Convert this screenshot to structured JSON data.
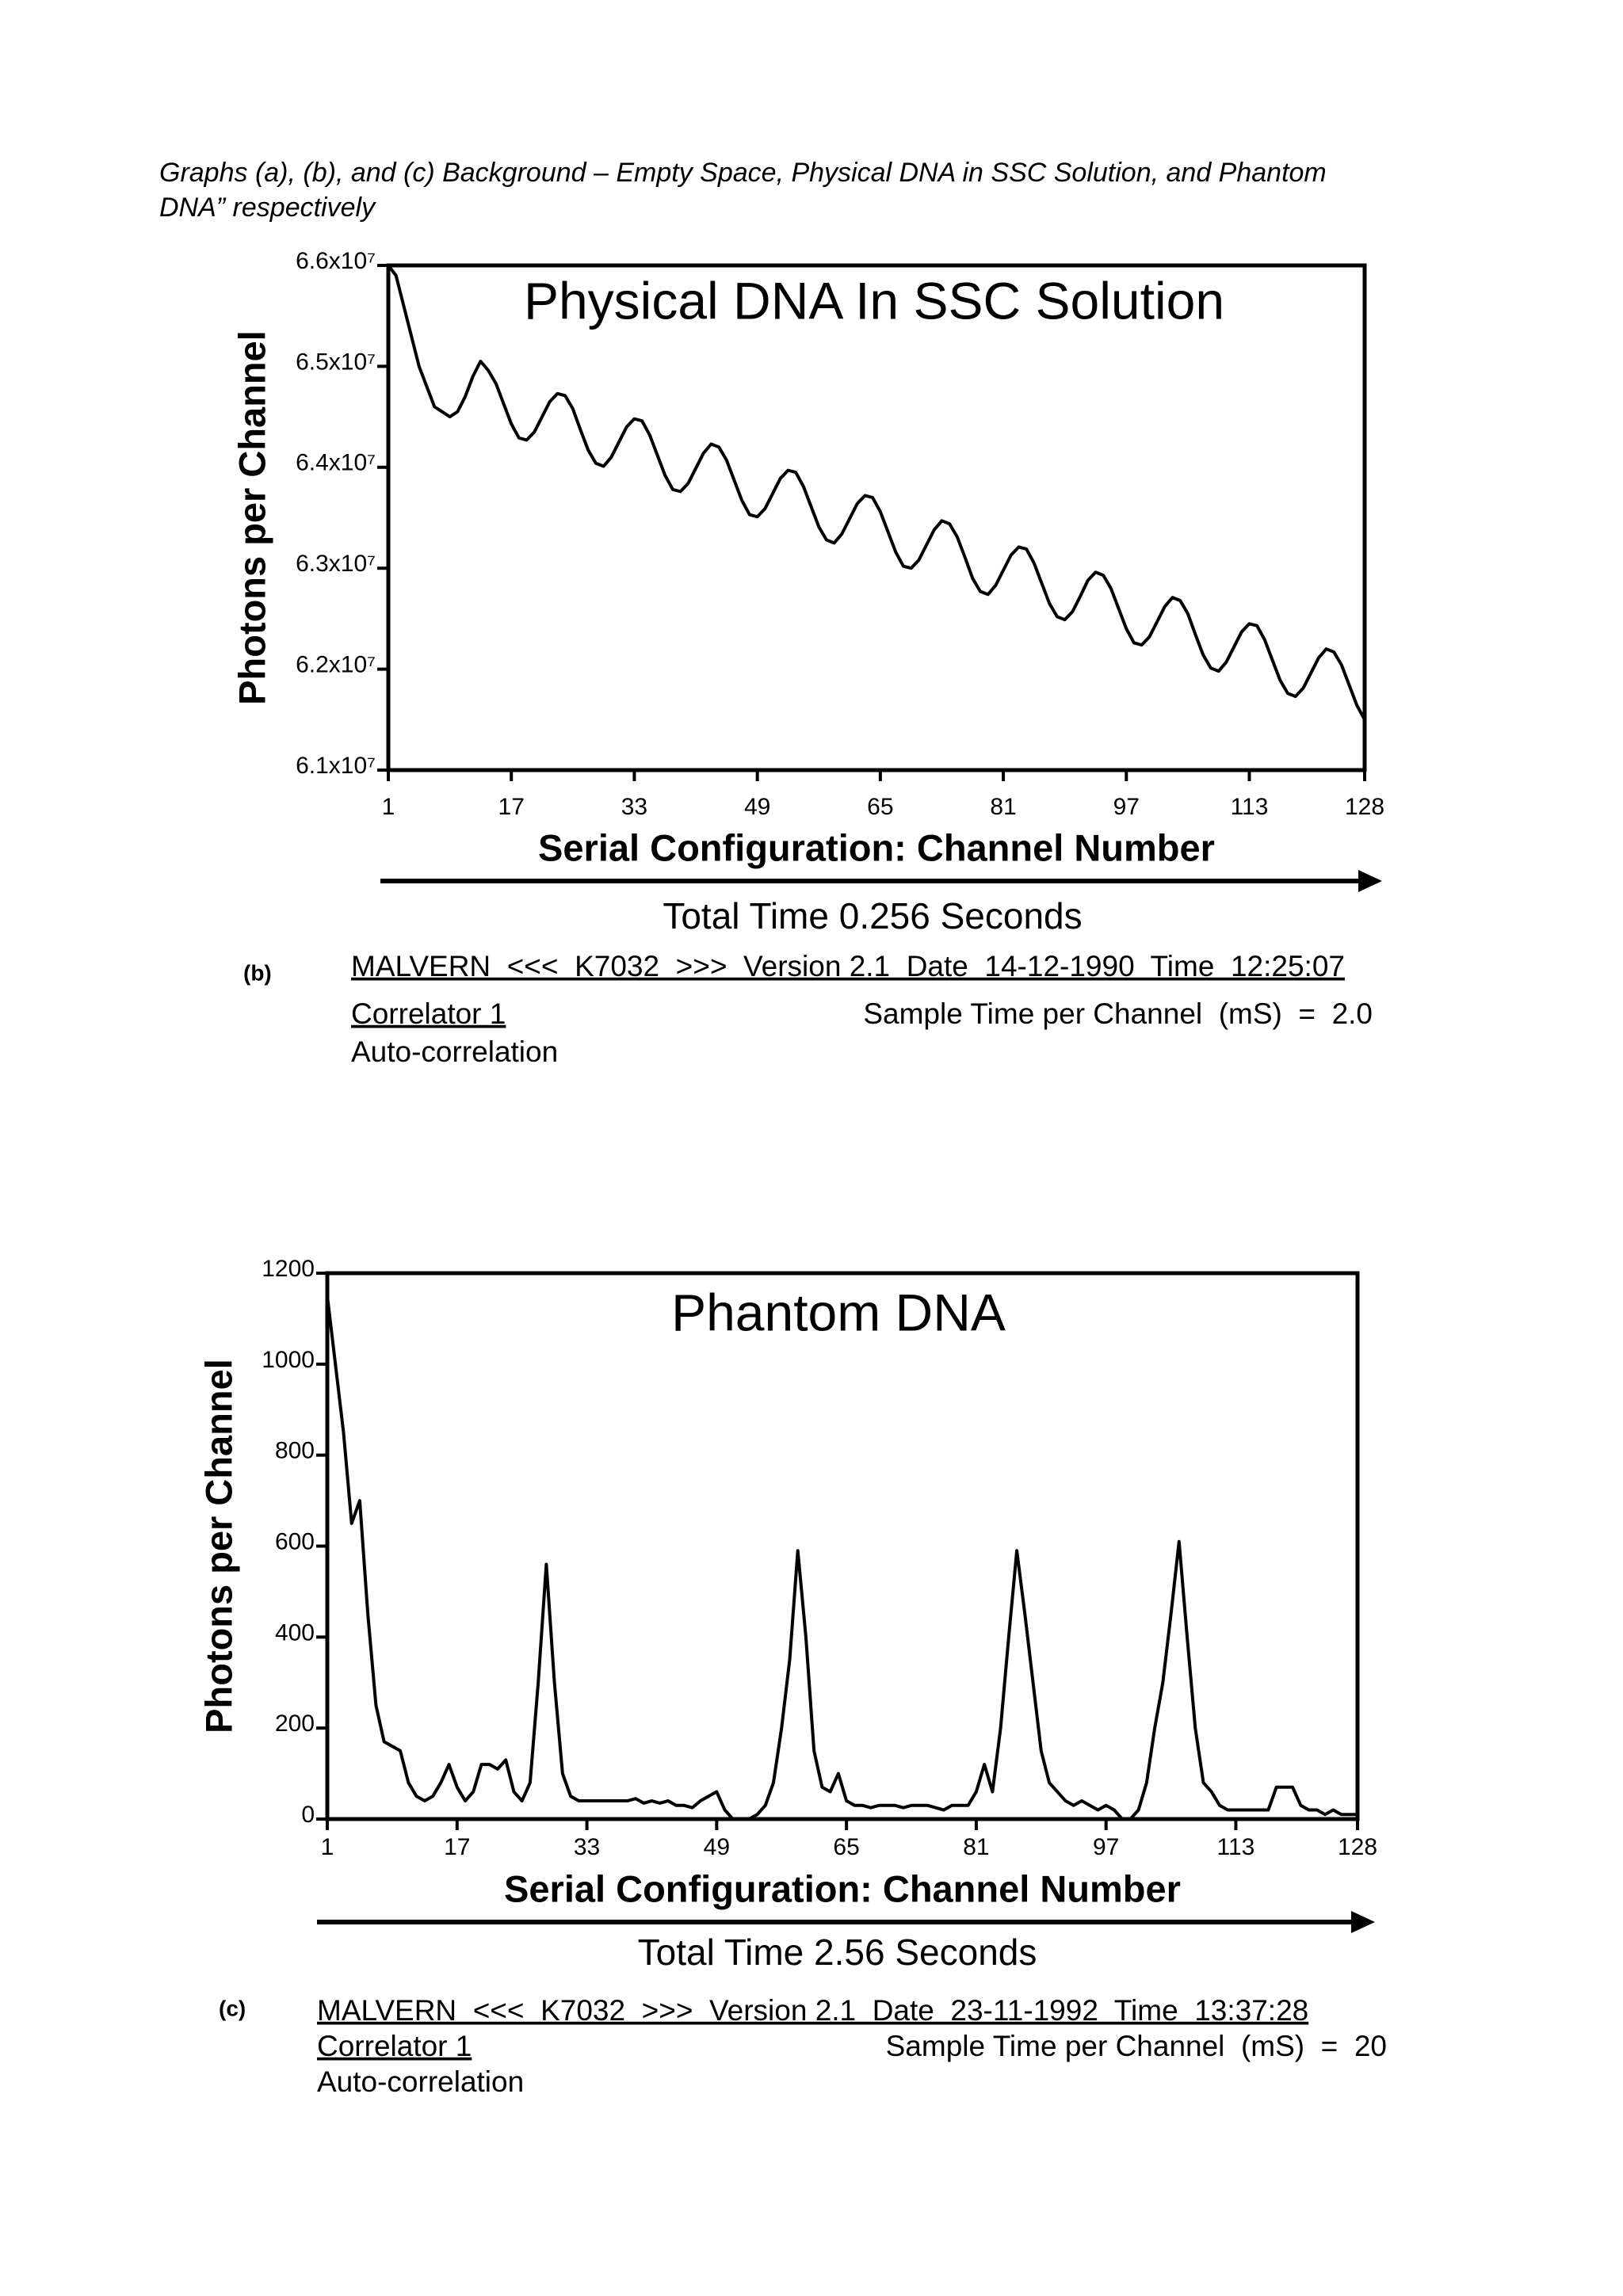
{
  "caption": [
    "Graphs (a), (b), and (c) Background – Empty Space, Physical DNA in SSC Solution, and Phantom",
    "DNA” respectively"
  ],
  "chart_data": [
    {
      "type": "line",
      "title": "Physical DNA In SSC Solution",
      "ylabel": "Photons per Channel",
      "xlabel": "Serial Configuration: Channel Number",
      "arrow_label": "Total Time 0.256  Seconds",
      "panel": "(b)",
      "footer": {
        "header": "MALVERN  <<<  K7032  >>>  Version 2.1  Date  14-12-1990  Time  12:25:07",
        "correlator": "Correlator 1",
        "sample_time": "Sample Time per Channel  (mS)  =  2.0",
        "mode": "Auto-correlation"
      },
      "color": "#000000",
      "xlim": [
        1,
        128
      ],
      "xticks": [
        1,
        17,
        33,
        49,
        65,
        81,
        97,
        113,
        128
      ],
      "ylim": [
        61000000.0,
        66000000.0
      ],
      "yticks": [
        {
          "value": 61000000.0,
          "label": "6.1x10⁷"
        },
        {
          "value": 62000000.0,
          "label": "6.2x10⁷"
        },
        {
          "value": 63000000.0,
          "label": "6.3x10⁷"
        },
        {
          "value": 64000000.0,
          "label": "6.4x10⁷"
        },
        {
          "value": 65000000.0,
          "label": "6.5x10⁷"
        },
        {
          "value": 66000000.0,
          "label": "6.6x10⁷"
        }
      ],
      "x": [
        1,
        2,
        3,
        4,
        5,
        6,
        7,
        8,
        9,
        10,
        11,
        12,
        13,
        14,
        15,
        16,
        17,
        18,
        19,
        20,
        21,
        22,
        23,
        24,
        25,
        26,
        27,
        28,
        29,
        30,
        31,
        32,
        33,
        34,
        35,
        36,
        37,
        38,
        39,
        40,
        41,
        42,
        43,
        44,
        45,
        46,
        47,
        48,
        49,
        50,
        51,
        52,
        53,
        54,
        55,
        56,
        57,
        58,
        59,
        60,
        61,
        62,
        63,
        64,
        65,
        66,
        67,
        68,
        69,
        70,
        71,
        72,
        73,
        74,
        75,
        76,
        77,
        78,
        79,
        80,
        81,
        82,
        83,
        84,
        85,
        86,
        87,
        88,
        89,
        90,
        91,
        92,
        93,
        94,
        95,
        96,
        97,
        98,
        99,
        100,
        101,
        102,
        103,
        104,
        105,
        106,
        107,
        108,
        109,
        110,
        111,
        112,
        113,
        114,
        115,
        116,
        117,
        118,
        119,
        120,
        121,
        122,
        123,
        124,
        125,
        126,
        127,
        128
      ],
      "values": [
        66000000.0,
        65900000.0,
        65600000.0,
        65300000.0,
        65000000.0,
        64800000.0,
        64600000.0,
        64550000.0,
        64500000.0,
        64550000.0,
        64700000.0,
        64900000.0,
        65050000.0,
        64960000.0,
        64830000.0,
        64630000.0,
        64430000.0,
        64290000.0,
        64270000.0,
        64350000.0,
        64500000.0,
        64650000.0,
        64730000.0,
        64710000.0,
        64580000.0,
        64370000.0,
        64170000.0,
        64040000.0,
        64010000.0,
        64100000.0,
        64250000.0,
        64400000.0,
        64480000.0,
        64460000.0,
        64320000.0,
        64120000.0,
        63920000.0,
        63780000.0,
        63760000.0,
        63840000.0,
        63990000.0,
        64140000.0,
        64230000.0,
        64200000.0,
        64070000.0,
        63870000.0,
        63670000.0,
        63530000.0,
        63510000.0,
        63590000.0,
        63740000.0,
        63890000.0,
        63970000.0,
        63950000.0,
        63810000.0,
        63610000.0,
        63410000.0,
        63280000.0,
        63250000.0,
        63340000.0,
        63490000.0,
        63640000.0,
        63720000.0,
        63700000.0,
        63560000.0,
        63360000.0,
        63160000.0,
        63020000.0,
        63000000.0,
        63080000.0,
        63230000.0,
        63380000.0,
        63470000.0,
        63440000.0,
        63310000.0,
        63110000.0,
        62900000.0,
        62770000.0,
        62740000.0,
        62830000.0,
        62980000.0,
        63130000.0,
        63210000.0,
        63190000.0,
        63050000.0,
        62850000.0,
        62650000.0,
        62520000.0,
        62490000.0,
        62570000.0,
        62720000.0,
        62880000.0,
        62960000.0,
        62930000.0,
        62800000.0,
        62600000.0,
        62400000.0,
        62260000.0,
        62240000.0,
        62320000.0,
        62470000.0,
        62620000.0,
        62710000.0,
        62680000.0,
        62550000.0,
        62340000.0,
        62140000.0,
        62010000.0,
        61980000.0,
        62070000.0,
        62220000.0,
        62370000.0,
        62450000.0,
        62430000.0,
        62290000.0,
        62090000.0,
        61890000.0,
        61760000.0,
        61730000.0,
        61810000.0,
        61960000.0,
        62110000.0,
        62200000.0,
        62170000.0,
        62040000.0,
        61840000.0,
        61640000.0,
        61500000.0
      ]
    },
    {
      "type": "line",
      "title": "Phantom DNA",
      "ylabel": "Photons per Channel",
      "xlabel": "Serial Configuration: Channel Number",
      "arrow_label": "Total Time 2.56 Seconds",
      "panel": "(c)",
      "footer": {
        "header": "MALVERN  <<<  K7032  >>>  Version 2.1  Date  23-11-1992  Time  13:37:28",
        "correlator": "Correlator 1",
        "sample_time": "Sample Time per Channel  (mS)  =  20",
        "mode": "Auto-correlation"
      },
      "color": "#000000",
      "xlim": [
        1,
        128
      ],
      "xticks": [
        1,
        17,
        33,
        49,
        65,
        81,
        97,
        113,
        128
      ],
      "ylim": [
        0,
        1200
      ],
      "yticks": [
        0,
        200,
        400,
        600,
        800,
        1000,
        1200
      ],
      "x": [
        1,
        2,
        3,
        4,
        5,
        6,
        7,
        8,
        9,
        10,
        11,
        12,
        13,
        14,
        15,
        16,
        17,
        18,
        19,
        20,
        21,
        22,
        23,
        24,
        25,
        26,
        27,
        28,
        29,
        30,
        31,
        32,
        33,
        34,
        35,
        36,
        37,
        38,
        39,
        40,
        41,
        42,
        43,
        44,
        45,
        46,
        47,
        48,
        49,
        50,
        51,
        52,
        53,
        54,
        55,
        56,
        57,
        58,
        59,
        60,
        61,
        62,
        63,
        64,
        65,
        66,
        67,
        68,
        69,
        70,
        71,
        72,
        73,
        74,
        75,
        76,
        77,
        78,
        79,
        80,
        81,
        82,
        83,
        84,
        85,
        86,
        87,
        88,
        89,
        90,
        91,
        92,
        93,
        94,
        95,
        96,
        97,
        98,
        99,
        100,
        101,
        102,
        103,
        104,
        105,
        106,
        107,
        108,
        109,
        110,
        111,
        112,
        113,
        114,
        115,
        116,
        117,
        118,
        119,
        120,
        121,
        122,
        123,
        124,
        125,
        126,
        127,
        128
      ],
      "values": [
        1150,
        1000,
        850,
        650,
        700,
        450,
        250,
        170,
        160,
        150,
        80,
        50,
        40,
        50,
        80,
        120,
        70,
        40,
        60,
        120,
        120,
        110,
        130,
        60,
        40,
        80,
        300,
        560,
        300,
        100,
        50,
        40,
        40,
        40,
        40,
        40,
        40,
        40,
        45,
        35,
        40,
        35,
        40,
        30,
        30,
        25,
        40,
        50,
        60,
        20,
        0,
        0,
        0,
        10,
        30,
        80,
        200,
        350,
        590,
        400,
        150,
        70,
        60,
        100,
        40,
        30,
        30,
        25,
        30,
        30,
        30,
        25,
        30,
        30,
        30,
        25,
        20,
        30,
        30,
        30,
        60,
        120,
        60,
        200,
        400,
        590,
        450,
        300,
        150,
        80,
        60,
        40,
        30,
        40,
        30,
        20,
        30,
        20,
        0,
        0,
        20,
        80,
        200,
        300,
        450,
        610,
        400,
        200,
        80,
        60,
        30,
        20,
        20,
        20,
        20,
        20,
        20,
        70,
        70,
        70,
        30,
        20,
        20,
        10,
        20,
        10,
        10,
        10
      ]
    }
  ]
}
